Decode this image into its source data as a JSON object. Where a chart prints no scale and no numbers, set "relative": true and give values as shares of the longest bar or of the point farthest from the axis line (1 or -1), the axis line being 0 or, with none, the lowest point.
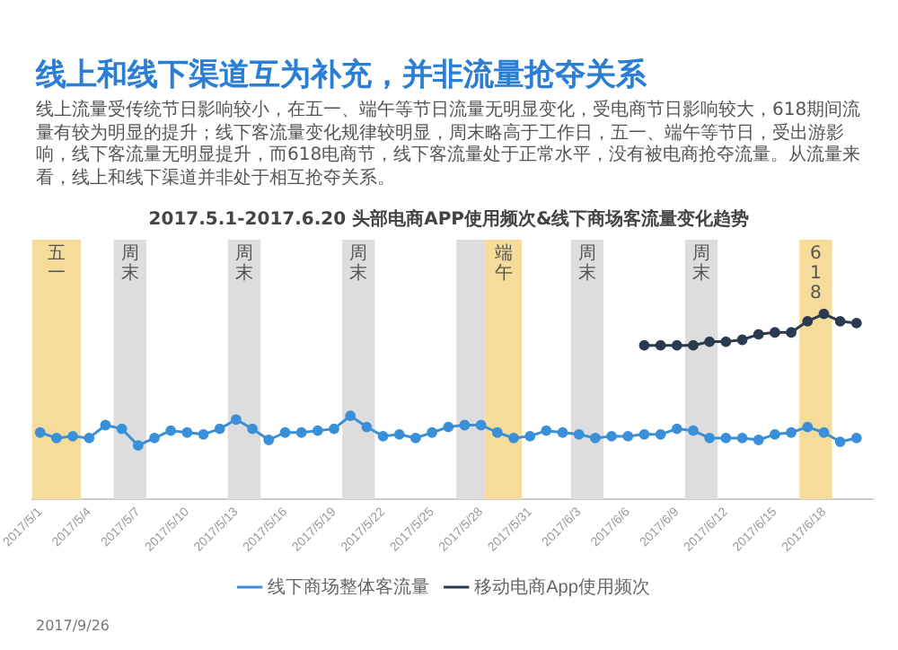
{
  "chart_data": {
    "type": "line",
    "title": "线上和线下渠道互为补充，并非流量抢夺关系",
    "subtitle": "线上流量受传统节日影响较小，在五一、端午等节日流量无明显变化，受电商节日影响较大，618期间流量有较为明显的提升；线下客流量变化规律较明显，周末略高于工作日，五一、端午等节日，受出游影响，线下客流量无明显提升，而618电商节，线下客流量处于正常水平，没有被电商抢夺流量。从流量来看，线上和线下渠道并非处于相互抢夺关系。",
    "annotations": [
      "2017.5.1-2017.6.20 头部电商APP使用频次&线下商场客流量变化趋势",
      "2017/9/26"
    ],
    "relative": true,
    "marker": "circle",
    "legend": "bottom",
    "grid": false,
    "x": [
      "2017-05-01",
      "2017-05-02",
      "2017-05-03",
      "2017-05-04",
      "2017-05-05",
      "2017-05-06",
      "2017-05-07",
      "2017-05-08",
      "2017-05-09",
      "2017-05-10",
      "2017-05-11",
      "2017-05-12",
      "2017-05-13",
      "2017-05-14",
      "2017-05-15",
      "2017-05-16",
      "2017-05-17",
      "2017-05-18",
      "2017-05-19",
      "2017-05-20",
      "2017-05-21",
      "2017-05-22",
      "2017-05-23",
      "2017-05-24",
      "2017-05-25",
      "2017-05-26",
      "2017-05-27",
      "2017-05-28",
      "2017-05-29",
      "2017-05-30",
      "2017-05-31",
      "2017-06-01",
      "2017-06-02",
      "2017-06-03",
      "2017-06-04",
      "2017-06-05",
      "2017-06-06",
      "2017-06-07",
      "2017-06-08",
      "2017-06-09",
      "2017-06-10",
      "2017-06-11",
      "2017-06-12",
      "2017-06-13",
      "2017-06-14",
      "2017-06-15",
      "2017-06-16",
      "2017-06-17",
      "2017-06-18",
      "2017-06-19",
      "2017-06-20"
    ],
    "xlim": [
      "2017-04-30T12:00",
      "2017-06-21"
    ],
    "xticks": [
      {
        "value": "2017-05-01",
        "label": "2017/5/1"
      },
      {
        "value": "2017-05-04",
        "label": "2017/5/4"
      },
      {
        "value": "2017-05-07",
        "label": "2017/5/7"
      },
      {
        "value": "2017-05-10",
        "label": "2017/5/10"
      },
      {
        "value": "2017-05-13",
        "label": "2017/5/13"
      },
      {
        "value": "2017-05-16",
        "label": "2017/5/16"
      },
      {
        "value": "2017-05-19",
        "label": "2017/5/19"
      },
      {
        "value": "2017-05-22",
        "label": "2017/5/22"
      },
      {
        "value": "2017-05-25",
        "label": "2017/5/25"
      },
      {
        "value": "2017-05-28",
        "label": "2017/5/28"
      },
      {
        "value": "2017-05-31",
        "label": "2017/5/31"
      },
      {
        "value": "2017-06-03",
        "label": "2017/6/3"
      },
      {
        "value": "2017-06-06",
        "label": "2017/6/6"
      },
      {
        "value": "2017-06-09",
        "label": "2017/6/9"
      },
      {
        "value": "2017-06-12",
        "label": "2017/6/12"
      },
      {
        "value": "2017-06-15",
        "label": "2017/6/15"
      },
      {
        "value": "2017-06-18",
        "label": "2017/6/18"
      }
    ],
    "bands": [
      {
        "axis": "x",
        "from": "2017-04-30T12:00",
        "to": "2017-05-03T12:00",
        "label": "五一",
        "color": "#f5dc9a"
      },
      {
        "axis": "x",
        "from": "2017-05-05T12:00",
        "to": "2017-05-07T12:00",
        "label": "周末",
        "color": "#dddddd"
      },
      {
        "axis": "x",
        "from": "2017-05-12T12:00",
        "to": "2017-05-14T12:00",
        "label": "周末",
        "color": "#dddddd"
      },
      {
        "axis": "x",
        "from": "2017-05-19T12:00",
        "to": "2017-05-21T12:00",
        "label": "周末",
        "color": "#dddddd"
      },
      {
        "axis": "x",
        "from": "2017-05-26T12:00",
        "to": "2017-05-28T06:00",
        "color": "#dddddd"
      },
      {
        "axis": "x",
        "from": "2017-05-28T06:00",
        "to": "2017-05-30T12:00",
        "label": "端午",
        "color": "#f5dc9a"
      },
      {
        "axis": "x",
        "from": "2017-06-02T12:00",
        "to": "2017-06-04T12:00",
        "label": "周末",
        "color": "#dddddd"
      },
      {
        "axis": "x",
        "from": "2017-06-09T12:00",
        "to": "2017-06-11T12:00",
        "label": "周末",
        "color": "#dddddd"
      },
      {
        "axis": "x",
        "from": "2017-06-16T12:00",
        "to": "2017-06-18T12:00",
        "label": "618",
        "color": "#f5dc9a"
      }
    ],
    "series": [
      {
        "name": "线下商场整体客流量",
        "color": "#3a8fd9",
        "values": [
          0.36,
          0.33,
          0.34,
          0.33,
          0.4,
          0.38,
          0.29,
          0.33,
          0.37,
          0.36,
          0.35,
          0.38,
          0.43,
          0.38,
          0.32,
          0.36,
          0.36,
          0.37,
          0.38,
          0.45,
          0.39,
          0.34,
          0.35,
          0.33,
          0.36,
          0.39,
          0.4,
          0.4,
          0.36,
          0.33,
          0.34,
          0.37,
          0.36,
          0.35,
          0.33,
          0.34,
          0.34,
          0.35,
          0.35,
          0.38,
          0.37,
          0.33,
          0.33,
          0.33,
          0.32,
          0.35,
          0.36,
          0.39,
          0.36,
          0.31,
          0.33
        ]
      },
      {
        "name": "移动电商App使用频次",
        "color": "#2b3a4f",
        "values": [
          null,
          null,
          null,
          null,
          null,
          null,
          null,
          null,
          null,
          null,
          null,
          null,
          null,
          null,
          null,
          null,
          null,
          null,
          null,
          null,
          null,
          null,
          null,
          null,
          null,
          null,
          null,
          null,
          null,
          null,
          null,
          null,
          null,
          null,
          null,
          null,
          null,
          0.83,
          0.83,
          0.83,
          0.83,
          0.85,
          0.85,
          0.86,
          0.89,
          0.9,
          0.9,
          0.96,
          1,
          0.96,
          0.95
        ]
      }
    ]
  }
}
